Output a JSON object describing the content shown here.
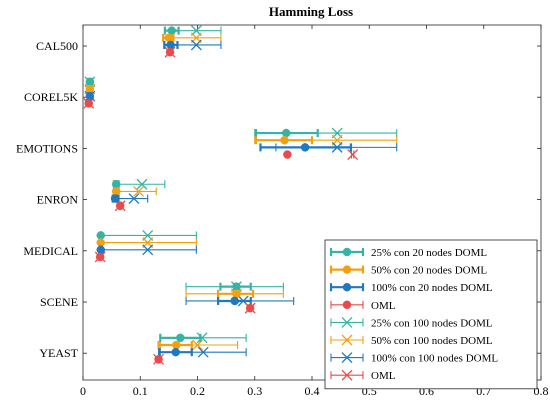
{
  "chart_data": {
    "type": "errorbar",
    "title": "Hamming Loss",
    "xlabel": "",
    "ylabel": "",
    "xlim": [
      0,
      0.8
    ],
    "xticks": [
      "0",
      "0.1",
      "0.2",
      "0.3",
      "0.4",
      "0.5",
      "0.6",
      "0.7",
      "0.8"
    ],
    "categories": [
      "CAL500",
      "COREL5K",
      "EMOTIONS",
      "ENRON",
      "MEDICAL",
      "SCENE",
      "YEAST"
    ],
    "legend_position": "bottom-right",
    "series": [
      {
        "name": "25% con 20 nodes DOML",
        "color": "#35b4a6",
        "marker": "circle",
        "thick": true,
        "offset": -0.3,
        "values": [
          [
            0.155,
            0.143,
            0.167
          ],
          [
            0.012,
            0.009,
            0.015
          ],
          [
            0.355,
            0.302,
            0.41
          ],
          [
            0.058,
            0.054,
            0.062
          ],
          [
            0.031,
            0.029,
            0.033
          ],
          [
            0.268,
            0.24,
            0.293
          ],
          [
            0.17,
            0.135,
            0.205
          ]
        ]
      },
      {
        "name": "50% con 20 nodes DOML",
        "color": "#f2a010",
        "marker": "circle",
        "thick": true,
        "offset": -0.16,
        "values": [
          [
            0.15,
            0.14,
            0.158
          ],
          [
            0.012,
            0.009,
            0.015
          ],
          [
            0.352,
            0.302,
            0.4
          ],
          [
            0.058,
            0.054,
            0.062
          ],
          [
            0.031,
            0.029,
            0.033
          ],
          [
            0.268,
            0.236,
            0.297
          ],
          [
            0.163,
            0.132,
            0.19
          ]
        ]
      },
      {
        "name": "100% con 20 nodes DOML",
        "color": "#1f78c0",
        "marker": "circle",
        "thick": true,
        "offset": -0.02,
        "values": [
          [
            0.153,
            0.142,
            0.165
          ],
          [
            0.012,
            0.009,
            0.015
          ],
          [
            0.388,
            0.31,
            0.468
          ],
          [
            0.056,
            0.052,
            0.06
          ],
          [
            0.031,
            0.029,
            0.033
          ],
          [
            0.265,
            0.236,
            0.293
          ],
          [
            0.162,
            0.133,
            0.19
          ]
        ]
      },
      {
        "name": "OML",
        "color": "#e84b4b",
        "marker": "circle",
        "thick": false,
        "offset": 0.12,
        "values": [
          [
            0.152,
            0.15,
            0.154
          ],
          [
            0.01,
            0.008,
            0.012
          ],
          [
            0.357,
            0.355,
            0.359
          ],
          [
            0.065,
            0.063,
            0.067
          ],
          [
            0.03,
            0.028,
            0.032
          ],
          [
            0.292,
            0.29,
            0.294
          ],
          [
            0.132,
            0.13,
            0.134
          ]
        ]
      },
      {
        "name": "25% con 100 nodes DOML",
        "color": "#35b4a6",
        "marker": "x",
        "thick": false,
        "offset": -0.3,
        "values": [
          [
            0.198,
            0.155,
            0.241
          ],
          [
            0.012,
            0.008,
            0.016
          ],
          [
            0.444,
            0.3,
            0.548
          ],
          [
            0.103,
            0.063,
            0.143
          ],
          [
            0.113,
            0.032,
            0.198
          ],
          [
            0.268,
            0.18,
            0.35
          ],
          [
            0.208,
            0.135,
            0.285
          ]
        ]
      },
      {
        "name": "50% con 100 nodes DOML",
        "color": "#f2a010",
        "marker": "x",
        "thick": false,
        "offset": -0.16,
        "values": [
          [
            0.198,
            0.155,
            0.241
          ],
          [
            0.012,
            0.008,
            0.016
          ],
          [
            0.444,
            0.3,
            0.548
          ],
          [
            0.097,
            0.063,
            0.128
          ],
          [
            0.113,
            0.032,
            0.198
          ],
          [
            0.268,
            0.18,
            0.35
          ],
          [
            0.2,
            0.135,
            0.27
          ]
        ]
      },
      {
        "name": "100% con 100 nodes DOML",
        "color": "#1f78c0",
        "marker": "x",
        "thick": false,
        "offset": -0.02,
        "values": [
          [
            0.198,
            0.155,
            0.241
          ],
          [
            0.012,
            0.008,
            0.016
          ],
          [
            0.444,
            0.337,
            0.548
          ],
          [
            0.089,
            0.063,
            0.113
          ],
          [
            0.113,
            0.032,
            0.198
          ],
          [
            0.28,
            0.18,
            0.368
          ],
          [
            0.21,
            0.135,
            0.285
          ]
        ]
      },
      {
        "name": "OML",
        "color": "#e84b4b",
        "marker": "x",
        "thick": false,
        "offset": 0.12,
        "values": [
          [
            0.152,
            0.15,
            0.154
          ],
          [
            0.01,
            0.008,
            0.012
          ],
          [
            0.471,
            0.469,
            0.473
          ],
          [
            0.065,
            0.063,
            0.067
          ],
          [
            0.03,
            0.028,
            0.032
          ],
          [
            0.292,
            0.29,
            0.294
          ],
          [
            0.132,
            0.13,
            0.134
          ]
        ]
      }
    ]
  }
}
